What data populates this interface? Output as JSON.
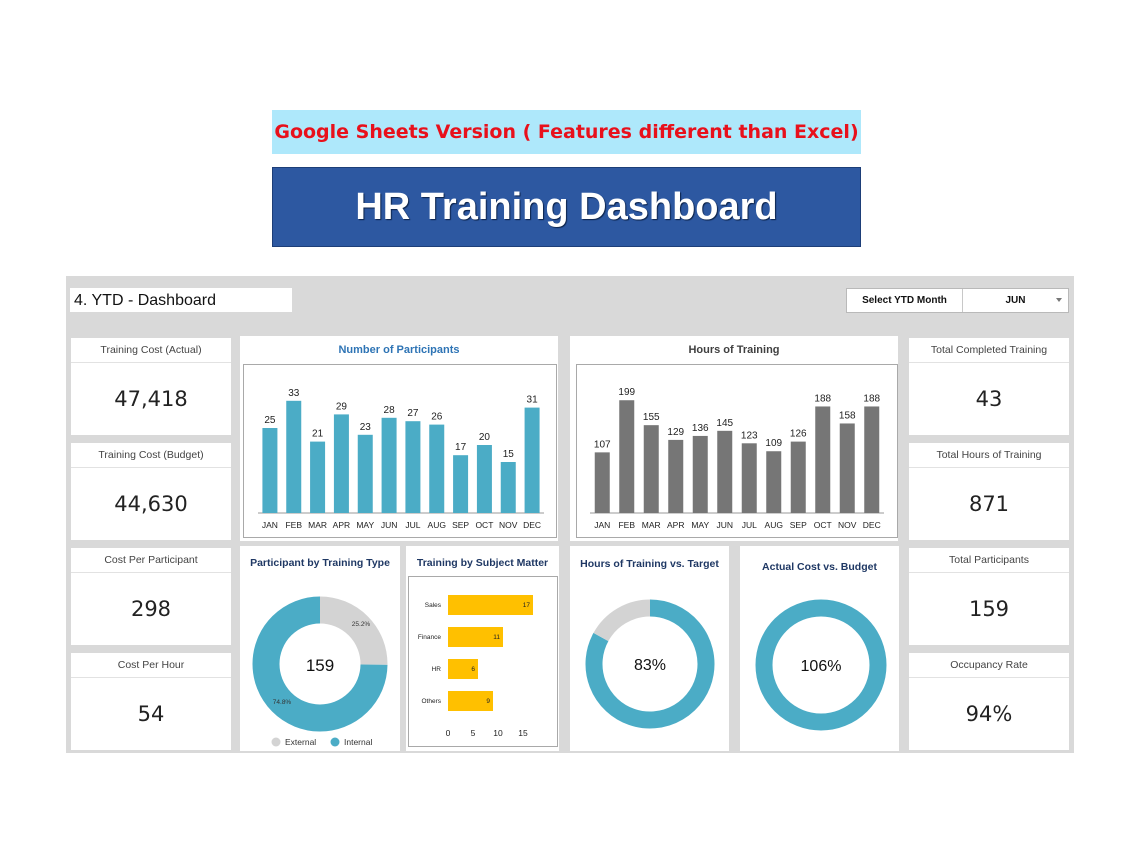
{
  "banner": {
    "note": "Google Sheets Version ( Features different than Excel)",
    "title": "HR Training Dashboard"
  },
  "dashboard": {
    "title": "4. YTD - Dashboard",
    "select_label": "Select YTD Month",
    "select_value": "JUN"
  },
  "kpis": {
    "training_cost_actual": {
      "label": "Training Cost (Actual)",
      "value": "47,418"
    },
    "training_cost_budget": {
      "label": "Training Cost (Budget)",
      "value": "44,630"
    },
    "cost_per_participant": {
      "label": "Cost Per Participant",
      "value": "298"
    },
    "cost_per_hour": {
      "label": "Cost Per Hour",
      "value": "54"
    },
    "total_completed_training": {
      "label": "Total Completed Training",
      "value": "43"
    },
    "total_hours_of_training": {
      "label": "Total Hours of Training",
      "value": "871"
    },
    "total_participants": {
      "label": "Total Participants",
      "value": "159"
    },
    "occupancy_rate": {
      "label": "Occupancy Rate",
      "value": "94%"
    }
  },
  "colors": {
    "teal": "#4bacc6",
    "gray_bar": "#767676",
    "light_gray": "#d3d3d3",
    "gold": "#ffc000",
    "title_blue": "#2e74b5",
    "title_navy": "#1f3864"
  },
  "chart_data": [
    {
      "type": "bar",
      "title": "Number of Participants",
      "categories": [
        "JAN",
        "FEB",
        "MAR",
        "APR",
        "MAY",
        "JUN",
        "JUL",
        "AUG",
        "SEP",
        "OCT",
        "NOV",
        "DEC"
      ],
      "values": [
        25,
        33,
        21,
        29,
        23,
        28,
        27,
        26,
        17,
        20,
        15,
        31
      ],
      "ylim": [
        0,
        40
      ],
      "color": "#4bacc6"
    },
    {
      "type": "bar",
      "title": "Hours of Training",
      "categories": [
        "JAN",
        "FEB",
        "MAR",
        "APR",
        "MAY",
        "JUN",
        "JUL",
        "AUG",
        "SEP",
        "OCT",
        "NOV",
        "DEC"
      ],
      "values": [
        107,
        199,
        155,
        129,
        136,
        145,
        123,
        109,
        126,
        188,
        158,
        188
      ],
      "ylim": [
        0,
        240
      ],
      "color": "#767676"
    },
    {
      "type": "pie",
      "title": "Participant by Training Type",
      "center_label": "159",
      "slices": [
        {
          "name": "External",
          "value": 25.2,
          "label": "25.2%",
          "color": "#d3d3d3"
        },
        {
          "name": "Internal",
          "value": 74.8,
          "label": "74.8%",
          "color": "#4bacc6"
        }
      ]
    },
    {
      "type": "bar",
      "orientation": "horizontal",
      "title": "Training by Subject Matter",
      "categories": [
        "Sales",
        "Finance",
        "HR",
        "Others"
      ],
      "values": [
        17,
        11,
        6,
        9
      ],
      "xlim": [
        0,
        18
      ],
      "xticks": [
        0,
        5,
        10,
        15
      ],
      "color": "#ffc000"
    },
    {
      "type": "pie",
      "title": "Hours of Training vs. Target",
      "center_label": "83%",
      "value": 83,
      "colors": [
        "#4bacc6",
        "#d3d3d3"
      ]
    },
    {
      "type": "pie",
      "title": "Actual Cost vs. Budget",
      "center_label": "106%",
      "value": 106,
      "colors": [
        "#4bacc6",
        "#d3d3d3"
      ]
    }
  ]
}
